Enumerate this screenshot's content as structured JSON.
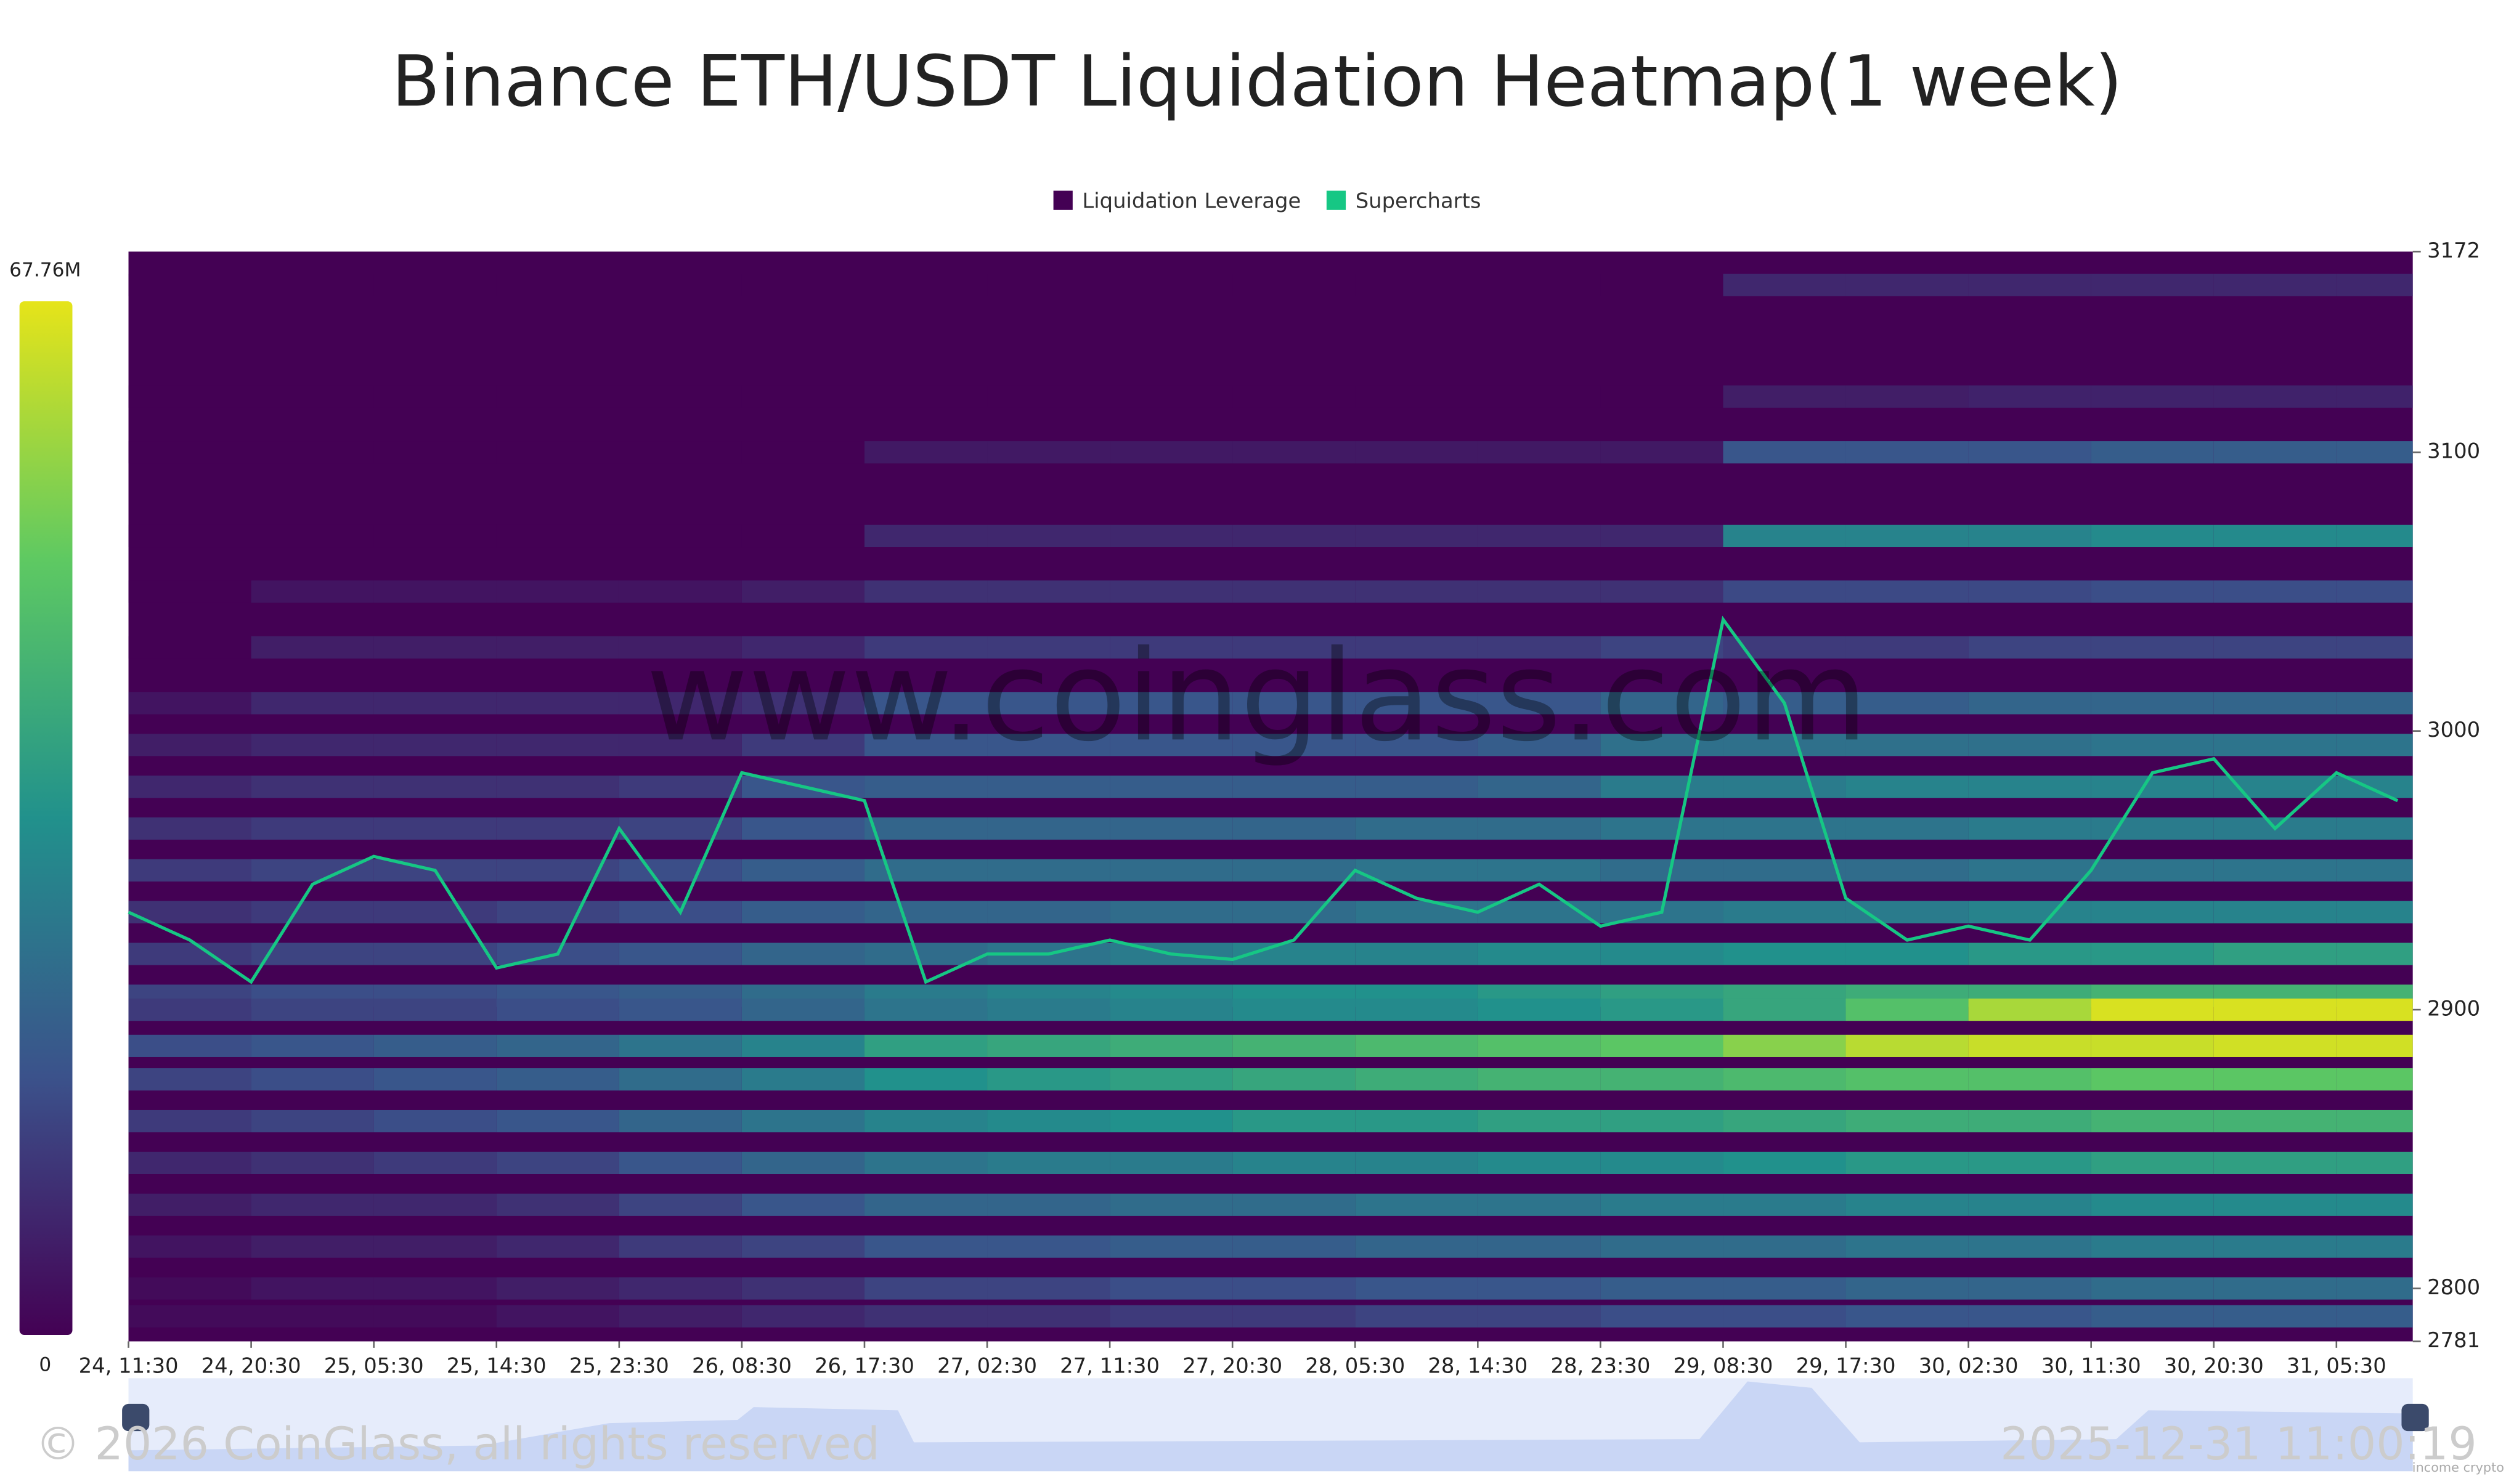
{
  "chart_data": {
    "type": "heatmap",
    "title": "Binance ETH/USDT Liquidation Heatmap(1 week)",
    "legend": "top",
    "watermark": "www.coinglass.com",
    "copyright": "© 2026 CoinGlass, all rights reserved",
    "timestamp": "2025-12-31 11:00:19",
    "credit": "income crypto",
    "xlim": [
      0,
      167.6
    ],
    "xticks": [
      {
        "value": 0,
        "label": "24, 11:30"
      },
      {
        "value": 9,
        "label": "24, 20:30"
      },
      {
        "value": 18,
        "label": "25, 05:30"
      },
      {
        "value": 27,
        "label": "25, 14:30"
      },
      {
        "value": 36,
        "label": "25, 23:30"
      },
      {
        "value": 45,
        "label": "26, 08:30"
      },
      {
        "value": 54,
        "label": "26, 17:30"
      },
      {
        "value": 63,
        "label": "27, 02:30"
      },
      {
        "value": 72,
        "label": "27, 11:30"
      },
      {
        "value": 81,
        "label": "27, 20:30"
      },
      {
        "value": 90,
        "label": "28, 05:30"
      },
      {
        "value": 99,
        "label": "28, 14:30"
      },
      {
        "value": 108,
        "label": "28, 23:30"
      },
      {
        "value": 117,
        "label": "29, 08:30"
      },
      {
        "value": 126,
        "label": "29, 17:30"
      },
      {
        "value": 135,
        "label": "30, 02:30"
      },
      {
        "value": 144,
        "label": "30, 11:30"
      },
      {
        "value": 153,
        "label": "30, 20:30"
      },
      {
        "value": 162,
        "label": "31, 05:30"
      }
    ],
    "ylim": [
      2781,
      3172
    ],
    "yticks": [
      2781,
      2800,
      2900,
      3000,
      3100,
      3172
    ],
    "colorbar": {
      "lim": [
        0,
        67.76
      ],
      "ticks": [
        0,
        {
          "value": 67.76,
          "label": "67.76M"
        }
      ]
    },
    "series": [
      {
        "name": "Liquidation Leverage",
        "color": "#440154",
        "x_edges": [
          0,
          9,
          18,
          27,
          36,
          45,
          54,
          63,
          72,
          81,
          90,
          99,
          108,
          117,
          126,
          135,
          144,
          153,
          162,
          167.6
        ],
        "y": [
          3160,
          3120,
          3100,
          3070,
          3050,
          3030,
          3010,
          2995,
          2980,
          2965,
          2950,
          2935,
          2920,
          2905,
          2900,
          2887,
          2875,
          2860,
          2845,
          2830,
          2815,
          2800,
          2790
        ],
        "z": [
          [
            0,
            0,
            0,
            0,
            0,
            0,
            0,
            0,
            0,
            0,
            0,
            0,
            0,
            8,
            8,
            8,
            8,
            8,
            8
          ],
          [
            0,
            0,
            0,
            0,
            0,
            0,
            0,
            0,
            0,
            0,
            0,
            0,
            0,
            6,
            6,
            7,
            7,
            7,
            7
          ],
          [
            0,
            0,
            0,
            0,
            0,
            0,
            5,
            5,
            5,
            5,
            5,
            5,
            5,
            18,
            18,
            18,
            20,
            20,
            20
          ],
          [
            0,
            0,
            0,
            0,
            0,
            0,
            8,
            8,
            8,
            8,
            8,
            8,
            8,
            30,
            30,
            30,
            32,
            32,
            32
          ],
          [
            0,
            4,
            4,
            4,
            4,
            6,
            10,
            10,
            10,
            10,
            10,
            10,
            10,
            15,
            15,
            15,
            16,
            16,
            16
          ],
          [
            0,
            6,
            6,
            6,
            6,
            8,
            12,
            12,
            12,
            12,
            12,
            12,
            14,
            12,
            12,
            14,
            14,
            14,
            14
          ],
          [
            4,
            8,
            8,
            8,
            8,
            10,
            18,
            18,
            18,
            18,
            18,
            18,
            22,
            20,
            20,
            22,
            22,
            22,
            22
          ],
          [
            6,
            8,
            8,
            8,
            8,
            12,
            18,
            18,
            18,
            18,
            18,
            20,
            25,
            25,
            25,
            25,
            26,
            26,
            26
          ],
          [
            8,
            10,
            10,
            10,
            12,
            18,
            20,
            20,
            20,
            20,
            20,
            22,
            28,
            28,
            30,
            30,
            30,
            30,
            30
          ],
          [
            10,
            12,
            12,
            12,
            14,
            18,
            22,
            22,
            22,
            22,
            24,
            24,
            26,
            26,
            26,
            28,
            28,
            28,
            28
          ],
          [
            12,
            14,
            14,
            14,
            16,
            20,
            24,
            24,
            24,
            24,
            26,
            26,
            24,
            24,
            24,
            26,
            26,
            26,
            26
          ],
          [
            10,
            12,
            12,
            14,
            16,
            20,
            22,
            22,
            24,
            24,
            26,
            26,
            26,
            28,
            28,
            30,
            30,
            30,
            30
          ],
          [
            12,
            14,
            14,
            16,
            18,
            22,
            24,
            26,
            28,
            30,
            30,
            32,
            32,
            34,
            34,
            36,
            36,
            38,
            38
          ],
          [
            14,
            16,
            16,
            18,
            20,
            24,
            28,
            30,
            32,
            34,
            34,
            36,
            38,
            40,
            42,
            42,
            44,
            44,
            44
          ],
          [
            12,
            14,
            14,
            16,
            18,
            22,
            26,
            28,
            30,
            32,
            32,
            34,
            36,
            40,
            48,
            60,
            66,
            66,
            66
          ],
          [
            16,
            18,
            20,
            22,
            26,
            30,
            38,
            40,
            42,
            44,
            46,
            48,
            50,
            56,
            62,
            64,
            64,
            65,
            65
          ],
          [
            14,
            16,
            18,
            20,
            24,
            28,
            34,
            36,
            38,
            40,
            42,
            44,
            44,
            46,
            48,
            48,
            50,
            50,
            50
          ],
          [
            12,
            14,
            16,
            18,
            22,
            26,
            30,
            32,
            34,
            36,
            36,
            38,
            38,
            40,
            42,
            42,
            44,
            44,
            44
          ],
          [
            8,
            10,
            12,
            14,
            18,
            22,
            26,
            28,
            28,
            30,
            30,
            32,
            32,
            34,
            36,
            36,
            38,
            38,
            38
          ],
          [
            6,
            8,
            8,
            10,
            14,
            18,
            22,
            22,
            24,
            24,
            26,
            26,
            28,
            28,
            30,
            30,
            32,
            32,
            32
          ],
          [
            4,
            6,
            6,
            8,
            12,
            14,
            18,
            18,
            20,
            20,
            22,
            22,
            24,
            24,
            26,
            26,
            28,
            28,
            28
          ],
          [
            2,
            4,
            4,
            6,
            8,
            10,
            14,
            14,
            16,
            16,
            18,
            18,
            20,
            20,
            22,
            22,
            24,
            24,
            24
          ],
          [
            2,
            2,
            2,
            4,
            6,
            8,
            10,
            10,
            12,
            12,
            14,
            14,
            16,
            16,
            18,
            18,
            20,
            20,
            20
          ]
        ]
      },
      {
        "name": "Supercharts",
        "color": "#16c784",
        "x": [
          0,
          4.5,
          9,
          13.5,
          18,
          22.5,
          27,
          31.5,
          36,
          40.5,
          45,
          49.5,
          54,
          58.5,
          63,
          67.5,
          72,
          76.5,
          81,
          85.5,
          90,
          94.5,
          99,
          103.5,
          108,
          112.5,
          117,
          121.5,
          126,
          130.5,
          135,
          139.5,
          144,
          148.5,
          153,
          157.5,
          162,
          166.5
        ],
        "values": [
          2935,
          2925,
          2910,
          2945,
          2955,
          2950,
          2915,
          2920,
          2965,
          2935,
          2985,
          2980,
          2975,
          2910,
          2920,
          2920,
          2925,
          2920,
          2918,
          2925,
          2950,
          2940,
          2935,
          2945,
          2930,
          2935,
          3040,
          3010,
          2940,
          2925,
          2930,
          2925,
          2950,
          2985,
          2990,
          2965,
          2985,
          2975
        ]
      }
    ]
  }
}
